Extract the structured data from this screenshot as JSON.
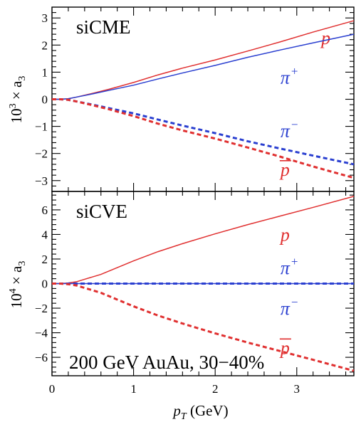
{
  "chart_data": [
    {
      "type": "line",
      "panel_label": "siCME",
      "ylabel_prefix": "10",
      "ylabel_exp": "3",
      "ylabel_suffix": " × a",
      "ylabel_sub": "3",
      "xlim": [
        0,
        3.7
      ],
      "ylim": [
        -3.4,
        3.4
      ],
      "yticks": [
        -3,
        -2,
        -1,
        0,
        1,
        2,
        3
      ],
      "series": [
        {
          "name": "p",
          "color": "#e03030",
          "dash": false,
          "label_base": "p",
          "label_sup": "",
          "overline": false,
          "label_pos": [
            3.3,
            2.27
          ],
          "x": [
            0,
            0.1,
            0.2,
            0.3,
            0.5,
            0.7,
            1.0,
            1.3,
            1.6,
            2.0,
            2.4,
            2.8,
            3.2,
            3.7
          ],
          "y": [
            0,
            0,
            0.02,
            0.08,
            0.22,
            0.37,
            0.62,
            0.9,
            1.15,
            1.45,
            1.78,
            2.12,
            2.48,
            2.9
          ]
        },
        {
          "name": "π+",
          "color": "#2a3fd0",
          "dash": false,
          "label_base": "π",
          "label_sup": "+",
          "overline": false,
          "label_pos": [
            2.8,
            0.82
          ],
          "x": [
            0,
            0.1,
            0.2,
            0.3,
            0.5,
            0.7,
            1.0,
            1.3,
            1.6,
            2.0,
            2.4,
            2.8,
            3.2,
            3.7
          ],
          "y": [
            0,
            0,
            0.02,
            0.08,
            0.2,
            0.33,
            0.52,
            0.75,
            0.97,
            1.25,
            1.55,
            1.82,
            2.08,
            2.4
          ]
        },
        {
          "name": "π−",
          "color": "#2a3fd0",
          "dash": true,
          "label_base": "π",
          "label_sup": "−",
          "overline": false,
          "label_pos": [
            2.8,
            -1.16
          ],
          "x": [
            0,
            0.1,
            0.2,
            0.3,
            0.5,
            0.7,
            1.0,
            1.3,
            1.6,
            2.0,
            2.4,
            2.8,
            3.2,
            3.7
          ],
          "y": [
            0,
            0,
            -0.02,
            -0.08,
            -0.2,
            -0.33,
            -0.52,
            -0.75,
            -0.97,
            -1.25,
            -1.55,
            -1.82,
            -2.08,
            -2.4
          ]
        },
        {
          "name": "p̄",
          "color": "#e03030",
          "dash": true,
          "label_base": "p",
          "label_sup": "",
          "overline": true,
          "label_pos": [
            2.8,
            -2.58
          ],
          "x": [
            0,
            0.1,
            0.2,
            0.3,
            0.5,
            0.7,
            1.0,
            1.3,
            1.6,
            2.0,
            2.4,
            2.8,
            3.2,
            3.7
          ],
          "y": [
            0,
            0,
            -0.02,
            -0.08,
            -0.22,
            -0.37,
            -0.62,
            -0.9,
            -1.15,
            -1.45,
            -1.78,
            -2.12,
            -2.48,
            -2.9
          ]
        }
      ]
    },
    {
      "type": "line",
      "panel_label": "siCVE",
      "annotation": "200 GeV AuAu, 30−40%",
      "ylabel_prefix": "10",
      "ylabel_exp": "4",
      "ylabel_suffix": " × a",
      "ylabel_sub": "3",
      "xlabel_base": "p",
      "xlabel_sub": "T",
      "xlabel_unit": " (GeV)",
      "xlim": [
        0,
        3.7
      ],
      "ylim": [
        -7.5,
        7.5
      ],
      "yticks": [
        -6,
        -4,
        -2,
        0,
        2,
        4,
        6
      ],
      "xticks": [
        0,
        1,
        2,
        3
      ],
      "series": [
        {
          "name": "p",
          "color": "#e03030",
          "dash": false,
          "label_base": "p",
          "label_sup": "",
          "overline": false,
          "label_pos": [
            2.8,
            4.0
          ],
          "x": [
            0,
            0.1,
            0.2,
            0.3,
            0.4,
            0.6,
            0.8,
            1.0,
            1.3,
            1.6,
            2.0,
            2.4,
            2.8,
            3.2,
            3.7
          ],
          "y": [
            0,
            0,
            0.05,
            0.15,
            0.35,
            0.75,
            1.3,
            1.85,
            2.6,
            3.25,
            4.05,
            4.8,
            5.5,
            6.2,
            7.1
          ]
        },
        {
          "name": "π+",
          "color": "#2a3fd0",
          "dash": false,
          "label_base": "π",
          "label_sup": "+",
          "overline": false,
          "label_pos": [
            2.8,
            1.3
          ],
          "x": [
            0,
            3.7
          ],
          "y": [
            0,
            0
          ]
        },
        {
          "name": "π−",
          "color": "#2a3fd0",
          "dash": true,
          "label_base": "π",
          "label_sup": "−",
          "overline": false,
          "label_pos": [
            2.8,
            -2.0
          ],
          "x": [
            0,
            3.7
          ],
          "y": [
            0,
            0
          ]
        },
        {
          "name": "p̄",
          "color": "#e03030",
          "dash": true,
          "label_base": "p",
          "label_sup": "",
          "overline": true,
          "label_pos": [
            2.8,
            -5.2
          ],
          "x": [
            0,
            0.1,
            0.2,
            0.3,
            0.4,
            0.6,
            0.8,
            1.0,
            1.3,
            1.6,
            2.0,
            2.4,
            2.8,
            3.2,
            3.7
          ],
          "y": [
            0,
            0,
            -0.05,
            -0.15,
            -0.35,
            -0.75,
            -1.3,
            -1.85,
            -2.6,
            -3.25,
            -4.05,
            -4.8,
            -5.5,
            -6.2,
            -7.1
          ]
        }
      ]
    }
  ]
}
